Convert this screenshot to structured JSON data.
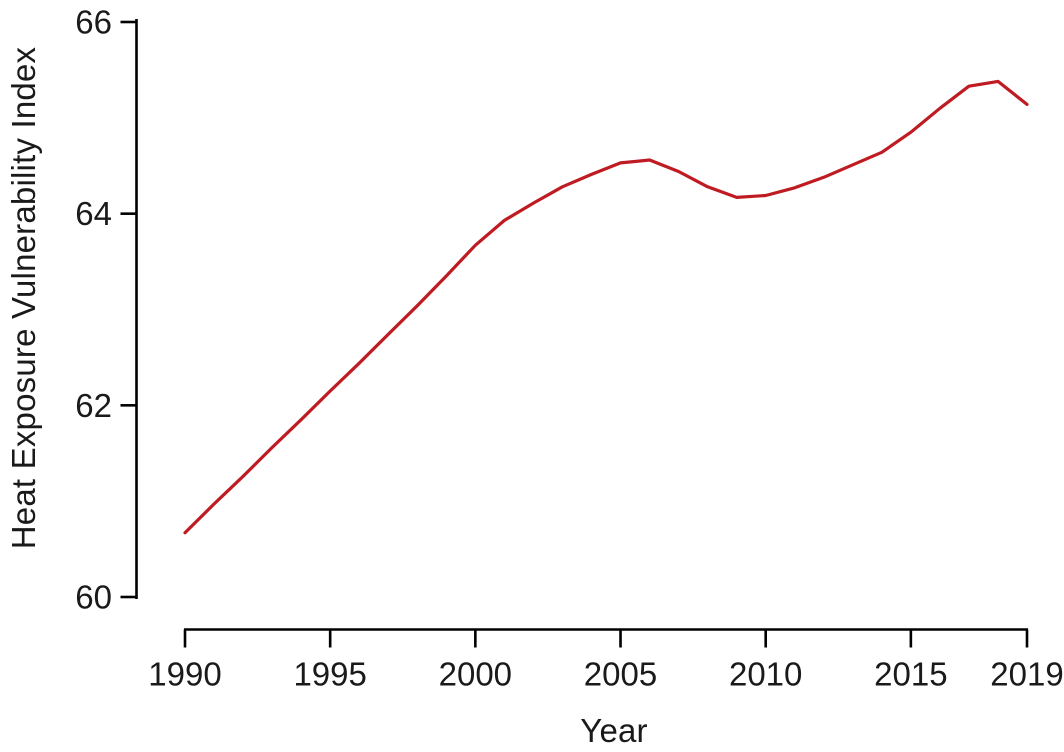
{
  "figure": {
    "background": "#ffffff",
    "kind": "line-chart"
  },
  "chart_data": {
    "type": "line",
    "title": "",
    "xlabel": "Year",
    "ylabel": "Heat Exposure Vulnerability Index",
    "x": [
      1990,
      1991,
      1992,
      1993,
      1994,
      1995,
      1996,
      1997,
      1998,
      1999,
      2000,
      2001,
      2002,
      2003,
      2004,
      2005,
      2006,
      2007,
      2008,
      2009,
      2010,
      2011,
      2012,
      2013,
      2014,
      2015,
      2016,
      2017,
      2018,
      2019
    ],
    "series": [
      {
        "name": "Heat Exposure Vulnerability Index",
        "color": "#bf1b22",
        "values": [
          60.67,
          60.97,
          61.26,
          61.56,
          61.85,
          62.15,
          62.44,
          62.74,
          63.04,
          63.35,
          63.67,
          63.93,
          64.11,
          64.28,
          64.41,
          64.53,
          64.56,
          64.44,
          64.28,
          64.17,
          64.19,
          64.27,
          64.38,
          64.51,
          64.64,
          64.85,
          65.1,
          65.33,
          65.38,
          65.14
        ]
      }
    ],
    "xlim": [
      1990,
      2019
    ],
    "ylim": [
      60,
      66
    ],
    "xticks": {
      "values": [
        1990,
        1995,
        2000,
        2005,
        2010,
        2015,
        2019
      ],
      "labels": [
        "1990",
        "1995",
        "2000",
        "2005",
        "2010",
        "2015",
        "2019"
      ]
    },
    "yticks": {
      "values": [
        60,
        62,
        64,
        66
      ],
      "labels": [
        "60",
        "62",
        "64",
        "66"
      ]
    },
    "grid": false,
    "legend": "none",
    "axis_color": "#000000",
    "text_color": "#1a1a1a",
    "line_width": 3.2
  }
}
